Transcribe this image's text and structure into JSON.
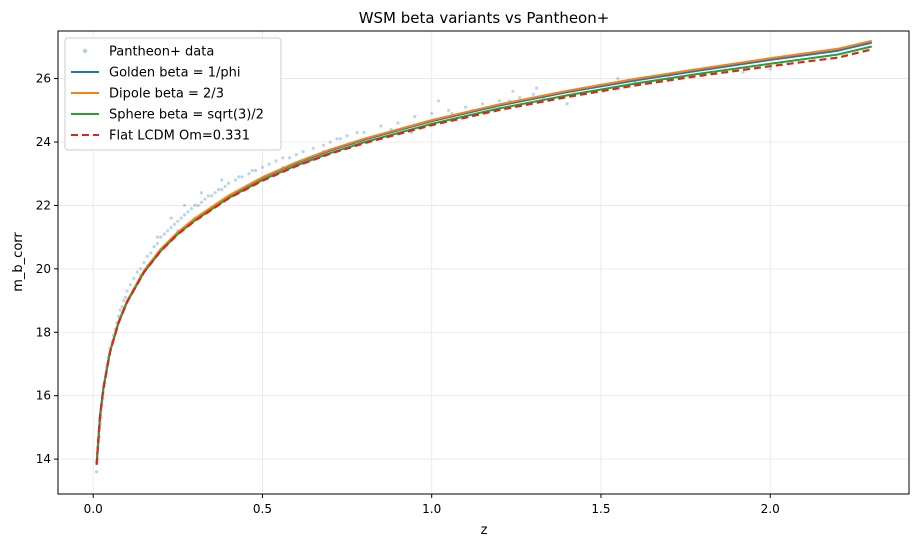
{
  "chart_data": {
    "type": "line",
    "title": "WSM beta variants vs Pantheon+",
    "xlabel": "z",
    "ylabel": "m_b_corr",
    "xlim": [
      -0.104,
      2.41
    ],
    "ylim": [
      12.9,
      27.5
    ],
    "x_ticks": [
      {
        "value": 0.0,
        "label": "0.0"
      },
      {
        "value": 0.5,
        "label": "0.5"
      },
      {
        "value": 1.0,
        "label": "1.0"
      },
      {
        "value": 1.5,
        "label": "1.5"
      },
      {
        "value": 2.0,
        "label": "2.0"
      }
    ],
    "y_ticks": [
      {
        "value": 14,
        "label": "14"
      },
      {
        "value": 16,
        "label": "16"
      },
      {
        "value": 18,
        "label": "18"
      },
      {
        "value": 20,
        "label": "20"
      },
      {
        "value": 22,
        "label": "22"
      },
      {
        "value": 24,
        "label": "24"
      },
      {
        "value": 26,
        "label": "26"
      }
    ],
    "grid": true,
    "legend_position": "top-left",
    "scatter": {
      "name": "Pantheon+ data",
      "color": "#1f77b4",
      "points": [
        [
          0.01,
          13.6
        ],
        [
          0.011,
          13.9
        ],
        [
          0.012,
          14.2
        ],
        [
          0.013,
          14.0
        ],
        [
          0.014,
          14.4
        ],
        [
          0.015,
          14.5
        ],
        [
          0.016,
          14.6
        ],
        [
          0.017,
          14.9
        ],
        [
          0.018,
          14.7
        ],
        [
          0.019,
          15.0
        ],
        [
          0.02,
          15.2
        ],
        [
          0.021,
          15.1
        ],
        [
          0.022,
          15.4
        ],
        [
          0.023,
          15.5
        ],
        [
          0.024,
          15.3
        ],
        [
          0.025,
          15.7
        ],
        [
          0.026,
          15.8
        ],
        [
          0.028,
          15.9
        ],
        [
          0.03,
          16.1
        ],
        [
          0.032,
          16.3
        ],
        [
          0.034,
          16.4
        ],
        [
          0.036,
          16.6
        ],
        [
          0.038,
          16.7
        ],
        [
          0.04,
          16.9
        ],
        [
          0.042,
          17.0
        ],
        [
          0.045,
          17.2
        ],
        [
          0.048,
          17.3
        ],
        [
          0.05,
          17.5
        ],
        [
          0.055,
          17.7
        ],
        [
          0.06,
          17.9
        ],
        [
          0.065,
          18.1
        ],
        [
          0.07,
          18.3
        ],
        [
          0.075,
          18.5
        ],
        [
          0.08,
          18.7
        ],
        [
          0.085,
          18.8
        ],
        [
          0.09,
          19.0
        ],
        [
          0.095,
          19.1
        ],
        [
          0.1,
          19.3
        ],
        [
          0.11,
          19.5
        ],
        [
          0.12,
          19.7
        ],
        [
          0.13,
          19.9
        ],
        [
          0.14,
          20.0
        ],
        [
          0.15,
          20.2
        ],
        [
          0.16,
          20.4
        ],
        [
          0.17,
          20.5
        ],
        [
          0.18,
          20.7
        ],
        [
          0.19,
          20.8
        ],
        [
          0.2,
          21.0
        ],
        [
          0.21,
          21.1
        ],
        [
          0.22,
          21.2
        ],
        [
          0.23,
          21.3
        ],
        [
          0.24,
          21.4
        ],
        [
          0.25,
          21.5
        ],
        [
          0.26,
          21.6
        ],
        [
          0.27,
          21.7
        ],
        [
          0.28,
          21.8
        ],
        [
          0.29,
          21.9
        ],
        [
          0.3,
          22.0
        ],
        [
          0.31,
          22.0
        ],
        [
          0.32,
          22.1
        ],
        [
          0.33,
          22.2
        ],
        [
          0.34,
          22.3
        ],
        [
          0.35,
          22.3
        ],
        [
          0.36,
          22.4
        ],
        [
          0.37,
          22.5
        ],
        [
          0.38,
          22.5
        ],
        [
          0.39,
          22.6
        ],
        [
          0.4,
          22.7
        ],
        [
          0.42,
          22.8
        ],
        [
          0.44,
          22.9
        ],
        [
          0.46,
          23.0
        ],
        [
          0.48,
          23.1
        ],
        [
          0.5,
          23.2
        ],
        [
          0.52,
          23.3
        ],
        [
          0.54,
          23.4
        ],
        [
          0.56,
          23.5
        ],
        [
          0.58,
          23.5
        ],
        [
          0.6,
          23.6
        ],
        [
          0.62,
          23.7
        ],
        [
          0.65,
          23.8
        ],
        [
          0.68,
          23.9
        ],
        [
          0.7,
          24.0
        ],
        [
          0.72,
          24.1
        ],
        [
          0.75,
          24.2
        ],
        [
          0.78,
          24.3
        ],
        [
          0.8,
          24.3
        ],
        [
          0.85,
          24.5
        ],
        [
          0.9,
          24.6
        ],
        [
          0.95,
          24.8
        ],
        [
          1.0,
          24.9
        ],
        [
          1.05,
          25.0
        ],
        [
          1.1,
          25.1
        ],
        [
          1.15,
          25.2
        ],
        [
          1.2,
          25.3
        ],
        [
          1.24,
          25.6
        ],
        [
          1.26,
          25.4
        ],
        [
          1.3,
          25.5
        ],
        [
          1.31,
          25.7
        ],
        [
          1.4,
          25.2
        ],
        [
          1.5,
          25.8
        ],
        [
          1.55,
          26.0
        ],
        [
          1.7,
          26.1
        ],
        [
          1.92,
          26.2
        ],
        [
          0.14,
          19.8
        ],
        [
          0.16,
          20.1
        ],
        [
          0.19,
          21.0
        ],
        [
          0.21,
          20.7
        ],
        [
          0.23,
          21.6
        ],
        [
          0.25,
          21.2
        ],
        [
          0.27,
          22.0
        ],
        [
          0.3,
          21.6
        ],
        [
          0.32,
          22.4
        ],
        [
          0.35,
          21.9
        ],
        [
          0.38,
          22.8
        ],
        [
          0.41,
          22.3
        ],
        [
          0.43,
          22.9
        ],
        [
          0.45,
          22.5
        ],
        [
          0.47,
          23.1
        ],
        [
          0.49,
          22.8
        ],
        [
          0.53,
          23.0
        ],
        [
          0.56,
          23.2
        ],
        [
          0.6,
          23.3
        ],
        [
          0.64,
          23.5
        ],
        [
          0.68,
          23.7
        ],
        [
          0.73,
          24.1
        ],
        [
          0.77,
          23.9
        ],
        [
          0.8,
          24.0
        ],
        [
          0.88,
          24.4
        ],
        [
          0.94,
          24.3
        ],
        [
          1.02,
          25.3
        ],
        [
          1.06,
          24.9
        ],
        [
          1.12,
          25.0
        ],
        [
          1.18,
          25.1
        ],
        [
          1.23,
          25.3
        ],
        [
          1.33,
          25.4
        ],
        [
          1.42,
          25.6
        ],
        [
          1.6,
          25.9
        ],
        [
          1.8,
          26.1
        ],
        [
          2.0,
          26.3
        ]
      ]
    },
    "series": [
      {
        "name": "Golden beta = 1/phi",
        "color": "#1f77b4",
        "dashed": false,
        "x": [
          0.01,
          0.02,
          0.03,
          0.05,
          0.075,
          0.1,
          0.15,
          0.2,
          0.25,
          0.3,
          0.4,
          0.5,
          0.6,
          0.7,
          0.8,
          1.0,
          1.2,
          1.4,
          1.6,
          1.8,
          2.0,
          2.2,
          2.3
        ],
        "y": [
          13.83,
          15.35,
          16.25,
          17.41,
          18.33,
          18.98,
          19.93,
          20.62,
          21.15,
          21.57,
          22.29,
          22.87,
          23.33,
          23.73,
          24.07,
          24.66,
          25.15,
          25.57,
          25.94,
          26.27,
          26.59,
          26.88,
          27.13
        ]
      },
      {
        "name": "Dipole beta = 2/3",
        "color": "#ff7f0e",
        "dashed": false,
        "x": [
          0.01,
          0.02,
          0.03,
          0.05,
          0.075,
          0.1,
          0.15,
          0.2,
          0.25,
          0.3,
          0.4,
          0.5,
          0.6,
          0.7,
          0.8,
          1.0,
          1.2,
          1.4,
          1.6,
          1.8,
          2.0,
          2.2,
          2.3
        ],
        "y": [
          13.84,
          15.36,
          16.26,
          17.42,
          18.34,
          18.99,
          19.94,
          20.63,
          21.16,
          21.59,
          22.31,
          22.89,
          23.36,
          23.76,
          24.1,
          24.69,
          25.19,
          25.61,
          25.99,
          26.32,
          26.64,
          26.94,
          27.19
        ]
      },
      {
        "name": "Sphere beta = sqrt(3)/2",
        "color": "#2ca02c",
        "dashed": false,
        "x": [
          0.01,
          0.02,
          0.03,
          0.05,
          0.075,
          0.1,
          0.15,
          0.2,
          0.25,
          0.3,
          0.4,
          0.5,
          0.6,
          0.7,
          0.8,
          1.0,
          1.2,
          1.4,
          1.6,
          1.8,
          2.0,
          2.2,
          2.3
        ],
        "y": [
          13.82,
          15.34,
          16.23,
          17.39,
          18.3,
          18.95,
          19.89,
          20.57,
          21.1,
          21.52,
          22.23,
          22.8,
          23.26,
          23.65,
          23.99,
          24.57,
          25.06,
          25.47,
          25.84,
          26.17,
          26.47,
          26.76,
          27.01
        ]
      },
      {
        "name": "Flat LCDM Om=0.331",
        "color": "#d62728",
        "dashed": true,
        "x": [
          0.01,
          0.02,
          0.03,
          0.05,
          0.075,
          0.1,
          0.15,
          0.2,
          0.25,
          0.3,
          0.4,
          0.5,
          0.6,
          0.7,
          0.8,
          1.0,
          1.2,
          1.4,
          1.6,
          1.8,
          2.0,
          2.2,
          2.3
        ],
        "y": [
          13.82,
          15.33,
          16.23,
          17.38,
          18.3,
          18.95,
          19.89,
          20.57,
          21.09,
          21.51,
          22.22,
          22.78,
          23.24,
          23.63,
          23.96,
          24.53,
          25.01,
          25.42,
          25.78,
          26.1,
          26.39,
          26.66,
          26.92
        ]
      }
    ]
  }
}
